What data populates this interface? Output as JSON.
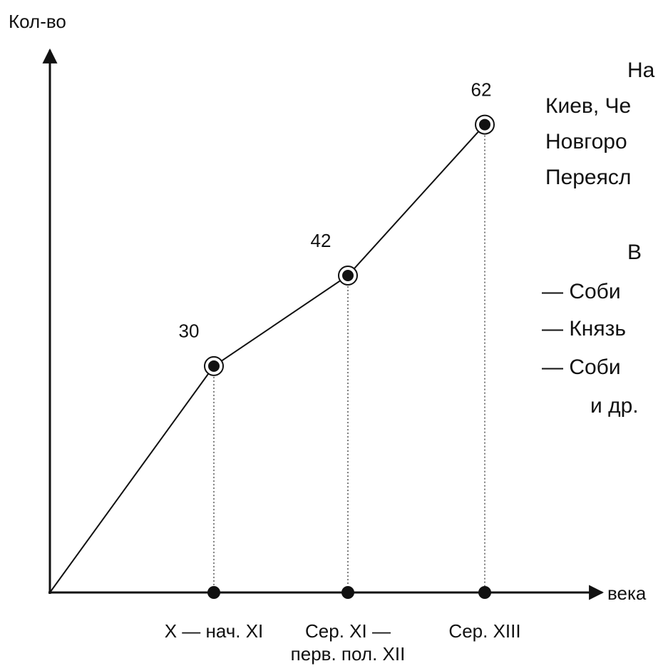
{
  "chart_data": {
    "type": "line",
    "y_label": "Кол-во",
    "x_label": "века",
    "categories": [
      "X — нач. XI",
      "Сер. XI —\nперв. пол. XII",
      "Сер. XIII"
    ],
    "values": [
      30,
      42,
      62
    ],
    "color": "#111111",
    "ylim": [
      0,
      70
    ],
    "annotations": [
      "На",
      "Киев, Че",
      "Новгоро",
      "Переясл",
      "В",
      "— Соби",
      "— Князь",
      "— Соби",
      "и др."
    ]
  }
}
